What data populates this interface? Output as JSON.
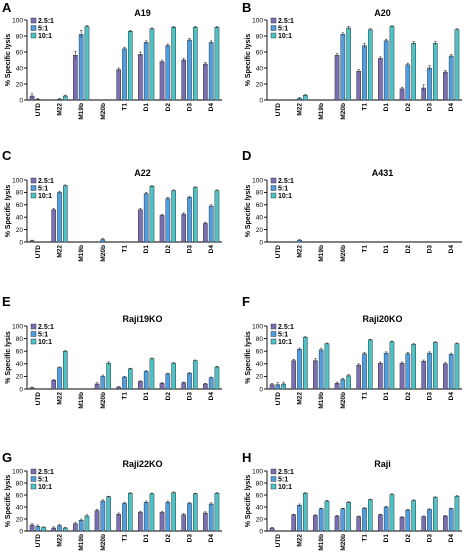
{
  "colors": {
    "2.5:1": "#7b6fb3",
    "5:1": "#4e9ee0",
    "10:1": "#4fc2c6",
    "bar_edge": "#1a1a1a"
  },
  "chart_data": [
    {
      "type": "bar",
      "panel": "A",
      "title": "A19",
      "ylabel": "% Specific lysis",
      "ylim": [
        0,
        100
      ],
      "yticks": [
        0,
        20,
        40,
        60,
        80,
        100
      ],
      "legend": [
        "2.5:1",
        "5:1",
        "10:1"
      ],
      "categories": [
        "UTD",
        "M22",
        "M19b",
        "M20b",
        "T1",
        "D1",
        "D2",
        "D3",
        "D4"
      ],
      "series": [
        {
          "name": "2.5:1",
          "values": [
            5,
            0,
            56,
            0,
            38,
            57,
            48,
            50,
            45
          ],
          "errors": [
            3,
            0,
            5,
            0,
            2,
            3,
            2,
            2,
            2
          ]
        },
        {
          "name": "5:1",
          "values": [
            1,
            1,
            82,
            0,
            64,
            72,
            68,
            75,
            72
          ],
          "errors": [
            1,
            1,
            5,
            0,
            2,
            2,
            2,
            2,
            2
          ]
        },
        {
          "name": "10:1",
          "values": [
            0,
            5,
            92,
            0,
            86,
            89,
            91,
            91,
            91
          ],
          "errors": [
            0,
            1,
            1,
            0,
            1,
            1,
            1,
            1,
            1
          ]
        }
      ]
    },
    {
      "type": "bar",
      "panel": "B",
      "title": "A20",
      "ylabel": "% Specific lysis",
      "ylim": [
        0,
        100
      ],
      "yticks": [
        0,
        20,
        40,
        60,
        80,
        100
      ],
      "legend": [
        "2.5:1",
        "5:1",
        "10:1"
      ],
      "categories": [
        "UTD",
        "M22",
        "M19b",
        "M20b",
        "T1",
        "D1",
        "D2",
        "D3",
        "D4"
      ],
      "series": [
        {
          "name": "2.5:1",
          "values": [
            0,
            0,
            0,
            56,
            36,
            52,
            14,
            15,
            35
          ],
          "errors": [
            0,
            0,
            0,
            2,
            2,
            2,
            2,
            4,
            2
          ]
        },
        {
          "name": "5:1",
          "values": [
            0,
            2,
            0,
            82,
            68,
            74,
            44,
            40,
            55
          ],
          "errors": [
            0,
            1,
            0,
            2,
            3,
            2,
            2,
            3,
            2
          ]
        },
        {
          "name": "10:1",
          "values": [
            0,
            6,
            0,
            90,
            88,
            92,
            71,
            71,
            88
          ],
          "errors": [
            0,
            1,
            0,
            2,
            1,
            1,
            2,
            2,
            1
          ]
        }
      ]
    },
    {
      "type": "bar",
      "panel": "C",
      "title": "A22",
      "ylabel": "% Specific lysis",
      "ylim": [
        0,
        100
      ],
      "yticks": [
        0,
        20,
        40,
        60,
        80,
        100
      ],
      "legend": [
        "2.5:1",
        "5:1",
        "10:1"
      ],
      "categories": [
        "UTD",
        "M22",
        "M19b",
        "M20b",
        "T1",
        "D1",
        "D2",
        "D3",
        "D4"
      ],
      "series": [
        {
          "name": "2.5:1",
          "values": [
            2,
            52,
            0,
            0,
            0,
            52,
            43,
            45,
            30
          ],
          "errors": [
            1,
            2,
            0,
            0,
            0,
            2,
            2,
            2,
            2
          ]
        },
        {
          "name": "5:1",
          "values": [
            0,
            80,
            0,
            4,
            0,
            78,
            70,
            72,
            58
          ],
          "errors": [
            0,
            2,
            0,
            2,
            0,
            2,
            2,
            2,
            2
          ]
        },
        {
          "name": "10:1",
          "values": [
            0,
            91,
            0,
            0,
            0,
            90,
            83,
            88,
            83
          ],
          "errors": [
            0,
            1,
            0,
            0,
            0,
            1,
            1,
            1,
            1
          ]
        }
      ]
    },
    {
      "type": "bar",
      "panel": "D",
      "title": "A431",
      "ylabel": "% Specific lysis",
      "ylim": [
        0,
        100
      ],
      "yticks": [
        0,
        20,
        40,
        60,
        80,
        100
      ],
      "legend": [
        "2.5:1",
        "5:1",
        "10:1"
      ],
      "categories": [
        "UTD",
        "M22",
        "M19b",
        "M20b",
        "T1",
        "D1",
        "D2",
        "D3",
        "D4"
      ],
      "series": [
        {
          "name": "2.5:1",
          "values": [
            0,
            0,
            0,
            0,
            0,
            0,
            0,
            0,
            0
          ],
          "errors": [
            0,
            0,
            0,
            0,
            0,
            0,
            0,
            0,
            0
          ]
        },
        {
          "name": "5:1",
          "values": [
            0,
            3,
            0,
            0,
            0,
            0,
            0,
            0,
            0
          ],
          "errors": [
            0,
            1,
            0,
            0,
            0,
            0,
            0,
            0,
            0
          ]
        },
        {
          "name": "10:1",
          "values": [
            0,
            0,
            0,
            0,
            0,
            0,
            0,
            0,
            0
          ],
          "errors": [
            0,
            0,
            0,
            0,
            0,
            0,
            0,
            0,
            0
          ]
        }
      ]
    },
    {
      "type": "bar",
      "panel": "E",
      "title": "Raji19KO",
      "ylabel": "% Specific lysis",
      "ylim": [
        0,
        100
      ],
      "yticks": [
        0,
        20,
        40,
        60,
        80,
        100
      ],
      "legend": [
        "2.5:1",
        "5:1",
        "10:1"
      ],
      "categories": [
        "UTD",
        "M22",
        "M19b",
        "M20b",
        "T1",
        "D1",
        "D2",
        "D3",
        "D4"
      ],
      "series": [
        {
          "name": "2.5:1",
          "values": [
            2,
            14,
            0,
            8,
            3,
            12,
            9,
            10,
            8
          ],
          "errors": [
            1,
            1,
            0,
            2,
            1,
            1,
            1,
            1,
            1
          ]
        },
        {
          "name": "5:1",
          "values": [
            0,
            34,
            0,
            20,
            19,
            28,
            24,
            25,
            18
          ],
          "errors": [
            0,
            1,
            0,
            2,
            1,
            1,
            1,
            1,
            1
          ]
        },
        {
          "name": "10:1",
          "values": [
            0,
            60,
            0,
            41,
            32,
            48,
            41,
            45,
            35
          ],
          "errors": [
            0,
            1,
            0,
            2,
            1,
            1,
            1,
            1,
            1
          ]
        }
      ]
    },
    {
      "type": "bar",
      "panel": "F",
      "title": "Raji20KO",
      "ylabel": "% Specific lysis",
      "ylim": [
        0,
        100
      ],
      "yticks": [
        0,
        20,
        40,
        60,
        80,
        100
      ],
      "legend": [
        "2.5:1",
        "5:1",
        "10:1"
      ],
      "categories": [
        "UTD",
        "M22",
        "M19b",
        "M20b",
        "T1",
        "D1",
        "D2",
        "D3",
        "D4"
      ],
      "series": [
        {
          "name": "2.5:1",
          "values": [
            7,
            45,
            45,
            9,
            38,
            41,
            41,
            44,
            40
          ],
          "errors": [
            2,
            2,
            3,
            2,
            2,
            2,
            2,
            2,
            2
          ]
        },
        {
          "name": "5:1",
          "values": [
            7,
            63,
            62,
            15,
            56,
            57,
            56,
            57,
            55
          ],
          "errors": [
            3,
            2,
            2,
            2,
            2,
            2,
            2,
            2,
            2
          ]
        },
        {
          "name": "10:1",
          "values": [
            8,
            82,
            72,
            21,
            78,
            75,
            71,
            74,
            72
          ],
          "errors": [
            3,
            1,
            1,
            2,
            1,
            1,
            1,
            1,
            1
          ]
        }
      ]
    },
    {
      "type": "bar",
      "panel": "G",
      "title": "Raji22KO",
      "ylabel": "% Specific lysis",
      "ylim": [
        0,
        100
      ],
      "yticks": [
        0,
        20,
        40,
        60,
        80,
        100
      ],
      "legend": [
        "2.5:1",
        "5:1",
        "10:1"
      ],
      "categories": [
        "UTD",
        "M22",
        "M19b",
        "M20b",
        "T1",
        "D1",
        "D2",
        "D3",
        "D4"
      ],
      "series": [
        {
          "name": "2.5:1",
          "values": [
            10,
            5,
            12,
            34,
            28,
            31,
            31,
            27,
            30
          ],
          "errors": [
            2,
            2,
            2,
            2,
            2,
            2,
            2,
            2,
            2
          ]
        },
        {
          "name": "5:1",
          "values": [
            8,
            9,
            18,
            50,
            46,
            48,
            48,
            46,
            45
          ],
          "errors": [
            2,
            2,
            2,
            2,
            2,
            2,
            2,
            2,
            2
          ]
        },
        {
          "name": "10:1",
          "values": [
            6,
            5,
            25,
            57,
            63,
            62,
            64,
            62,
            63
          ],
          "errors": [
            1,
            1,
            2,
            1,
            1,
            1,
            1,
            1,
            1
          ]
        }
      ]
    },
    {
      "type": "bar",
      "panel": "H",
      "title": "Raji",
      "ylabel": "% Specific lysis",
      "ylim": [
        0,
        100
      ],
      "yticks": [
        0,
        20,
        40,
        60,
        80,
        100
      ],
      "legend": [
        "2.5:1",
        "5:1",
        "10:1"
      ],
      "categories": [
        "UTD",
        "M22",
        "M19b",
        "M20b",
        "T1",
        "D1",
        "D2",
        "D3",
        "D4"
      ],
      "series": [
        {
          "name": "2.5:1",
          "values": [
            5,
            27,
            26,
            25,
            24,
            27,
            23,
            24,
            25
          ],
          "errors": [
            1,
            1,
            1,
            1,
            1,
            1,
            1,
            1,
            1
          ]
        },
        {
          "name": "5:1",
          "values": [
            0,
            43,
            37,
            37,
            38,
            40,
            35,
            36,
            37
          ],
          "errors": [
            0,
            2,
            1,
            1,
            1,
            1,
            1,
            1,
            1
          ]
        },
        {
          "name": "10:1",
          "values": [
            0,
            63,
            50,
            48,
            52,
            61,
            51,
            56,
            58
          ],
          "errors": [
            0,
            1,
            1,
            1,
            1,
            1,
            1,
            1,
            1
          ]
        }
      ]
    }
  ]
}
